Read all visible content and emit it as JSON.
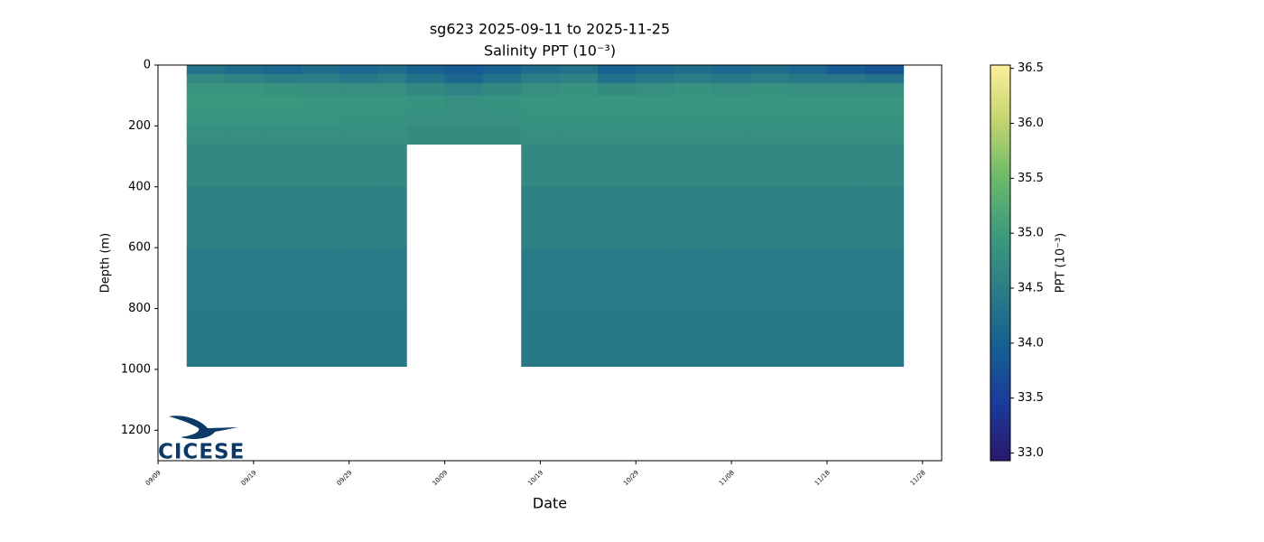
{
  "chart_data": {
    "type": "heatmap",
    "title": "sg623 2025-09-11 to 2025-11-25",
    "subtitle": "Salinity PPT (10⁻³)",
    "x_label": "Date",
    "y_label": "Depth (m)",
    "colorbar_label": "PPT (10⁻³)",
    "logo_text": "CICESE",
    "xlim": [
      "09/09",
      "11/30"
    ],
    "xticks": [
      "09/09",
      "09/19",
      "09/29",
      "10/09",
      "10/19",
      "10/29",
      "11/08",
      "11/18",
      "11/28"
    ],
    "ylim": [
      0,
      1300
    ],
    "y_inverted": true,
    "yticks": [
      0,
      200,
      400,
      600,
      800,
      1000,
      1200
    ],
    "clim": [
      32.93,
      36.53
    ],
    "cticks": [
      {
        "value": 33,
        "label": "33.0"
      },
      {
        "value": 33.5,
        "label": "33.5"
      },
      {
        "value": 34,
        "label": "34.0"
      },
      {
        "value": 34.5,
        "label": "34.5"
      },
      {
        "value": 35,
        "label": "35.0"
      },
      {
        "value": 35.5,
        "label": "35.5"
      },
      {
        "value": 36,
        "label": "36.0"
      },
      {
        "value": 36.5,
        "label": "36.5"
      }
    ],
    "colormap": [
      "#2a186c",
      "#1b3a9a",
      "#155f92",
      "#2b7c86",
      "#3c9a7d",
      "#6bb96a",
      "#c2d46e",
      "#fdef9a"
    ],
    "x_bins": [
      "09/12",
      "09/16",
      "09/20",
      "09/24",
      "09/28",
      "10/02",
      "10/05",
      "10/09",
      "10/13",
      "10/17",
      "10/21",
      "10/25",
      "10/29",
      "11/02",
      "11/06",
      "11/10",
      "11/14",
      "11/18",
      "11/22",
      "11/26"
    ],
    "depth_bins": [
      0,
      30,
      60,
      100,
      150,
      200,
      260,
      400,
      600,
      800,
      990
    ],
    "values": [
      [
        34.3,
        34.7,
        34.9,
        34.95,
        34.9,
        34.8,
        34.7,
        34.55,
        34.45,
        34.4
      ],
      [
        34.2,
        34.6,
        34.9,
        34.95,
        34.9,
        34.8,
        34.7,
        34.55,
        34.45,
        34.4
      ],
      [
        34.1,
        34.5,
        34.85,
        34.95,
        34.9,
        34.8,
        34.7,
        34.55,
        34.45,
        34.4
      ],
      [
        34.2,
        34.5,
        34.8,
        34.9,
        34.9,
        34.8,
        34.7,
        34.55,
        34.45,
        34.4
      ],
      [
        34.1,
        34.4,
        34.8,
        34.9,
        34.85,
        34.8,
        34.7,
        34.55,
        34.45,
        34.4
      ],
      [
        34.2,
        34.5,
        34.8,
        34.9,
        34.85,
        34.8,
        34.7,
        34.55,
        34.45,
        34.4
      ],
      [
        34.0,
        34.3,
        34.7,
        34.85,
        34.8,
        34.75,
        null,
        null,
        null,
        null
      ],
      [
        33.9,
        34.1,
        34.6,
        34.8,
        34.8,
        34.75,
        null,
        null,
        null,
        null
      ],
      [
        34.0,
        34.3,
        34.7,
        34.85,
        34.8,
        34.75,
        null,
        null,
        null,
        null
      ],
      [
        34.2,
        34.5,
        34.8,
        34.9,
        34.85,
        34.8,
        34.7,
        34.55,
        34.45,
        34.4
      ],
      [
        34.3,
        34.6,
        34.85,
        34.9,
        34.85,
        34.8,
        34.7,
        34.55,
        34.45,
        34.4
      ],
      [
        34.0,
        34.3,
        34.75,
        34.9,
        34.85,
        34.8,
        34.7,
        34.55,
        34.45,
        34.4
      ],
      [
        34.1,
        34.4,
        34.8,
        34.9,
        34.85,
        34.8,
        34.7,
        34.55,
        34.45,
        34.4
      ],
      [
        34.2,
        34.5,
        34.85,
        34.9,
        34.85,
        34.8,
        34.7,
        34.55,
        34.45,
        34.4
      ],
      [
        34.1,
        34.4,
        34.8,
        34.9,
        34.85,
        34.8,
        34.7,
        34.55,
        34.45,
        34.4
      ],
      [
        34.2,
        34.5,
        34.85,
        34.9,
        34.85,
        34.8,
        34.7,
        34.55,
        34.45,
        34.4
      ],
      [
        34.1,
        34.4,
        34.8,
        34.9,
        34.85,
        34.8,
        34.7,
        34.55,
        34.45,
        34.4
      ],
      [
        33.9,
        34.4,
        34.8,
        34.9,
        34.85,
        34.8,
        34.7,
        34.55,
        34.45,
        34.4
      ],
      [
        33.8,
        34.3,
        34.8,
        34.9,
        34.85,
        34.8,
        34.7,
        34.55,
        34.45,
        34.4
      ]
    ]
  }
}
